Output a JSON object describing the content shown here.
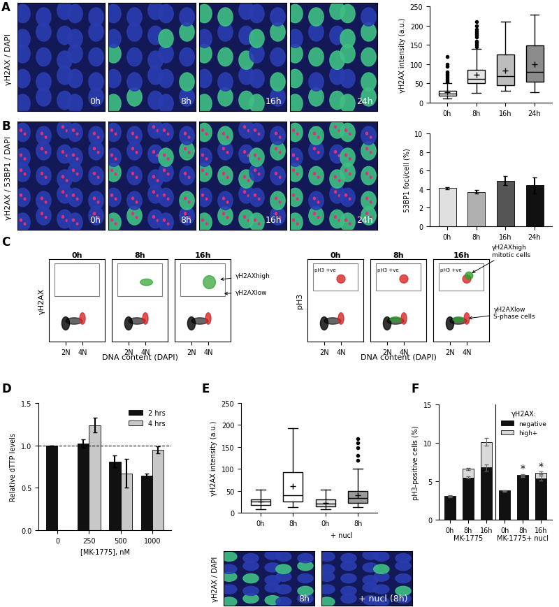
{
  "images": [
    {
      "panel": "A",
      "channels": "γH2AX / DAPI",
      "labels": [
        "0h",
        "8h",
        "16h",
        "24h"
      ]
    },
    {
      "panel": "B",
      "channels": "γH2AX / 53BP1 / DAPI",
      "labels": [
        "0h",
        "8h",
        "16h",
        "24h"
      ]
    },
    {
      "channels": "γH2AX / DAPI",
      "labels": [
        "8h",
        "+ nucl (8h)"
      ]
    }
  ],
  "flow_cytometry": {
    "panel": "C",
    "times": [
      "0h",
      "8h",
      "16h"
    ],
    "xlabel": "DNA content (DAPI)",
    "xtick_labels": [
      "2N",
      "4N"
    ],
    "left": {
      "ylabel": "γH2AX",
      "annotations": [
        "γH2AXhigh",
        "γH2AXlow"
      ]
    },
    "right": {
      "ylabel": "pH3",
      "gate_label": "pH3 +ve",
      "annotations": [
        "γH2AXhigh\nmitotic cells",
        "γH2AXlow\nS-phase cells"
      ]
    }
  },
  "chart_data": [
    {
      "type": "box",
      "ylabel": "γH2AX intensity (a.u.)",
      "categories": [
        "0h",
        "8h",
        "16h",
        "24h"
      ],
      "colors": [
        "#ffffff",
        "#e6e6e6",
        "#bdbdbd",
        "#8c8c8c"
      ],
      "boxes": [
        {
          "whislo": 10,
          "q1": 18,
          "med": 24,
          "q3": 30,
          "whishi": 50,
          "mean": 27,
          "fliers": [
            55,
            60,
            65,
            70,
            75,
            80,
            95,
            100,
            120
          ]
        },
        {
          "whislo": 25,
          "q1": 50,
          "med": 62,
          "q3": 85,
          "whishi": 140,
          "mean": 72,
          "fliers": [
            145,
            150,
            155,
            160,
            170,
            175,
            180,
            185,
            190,
            200,
            210
          ]
        },
        {
          "whislo": 30,
          "q1": 45,
          "med": 68,
          "q3": 125,
          "whishi": 210,
          "mean": 83,
          "fliers": []
        },
        {
          "whislo": 28,
          "q1": 55,
          "med": 80,
          "q3": 148,
          "whishi": 228,
          "mean": 100,
          "fliers": []
        }
      ],
      "ylim": [
        0,
        250
      ],
      "yticks": [
        0,
        50,
        100,
        150,
        200,
        250
      ]
    },
    {
      "type": "bar",
      "ylabel": "53BP1 foci/cell (%)",
      "categories": [
        "0h",
        "8h",
        "16h",
        "24h"
      ],
      "values": [
        4.1,
        3.7,
        4.9,
        4.4
      ],
      "errors": [
        0.1,
        0.2,
        0.5,
        0.9
      ],
      "colors": [
        "#e0e0e0",
        "#b0b0b0",
        "#555555",
        "#111111"
      ],
      "ylim": [
        0,
        10
      ],
      "yticks": [
        0,
        2,
        4,
        6,
        8,
        10
      ]
    },
    {
      "panel": "D",
      "type": "bar",
      "ylabel": "Relative dTTP levels",
      "xlabel": "[MK-1775], nM",
      "categories": [
        "0",
        "250",
        "500",
        "1000"
      ],
      "series": [
        {
          "name": "2 hrs",
          "color": "#111111",
          "values": [
            1.0,
            1.02,
            0.81,
            0.64
          ],
          "errors": [
            0,
            0.05,
            0.07,
            0.03
          ]
        },
        {
          "name": "4 hrs",
          "color": "#c8c8c8",
          "values": [
            null,
            1.24,
            0.67,
            0.95
          ],
          "errors": [
            null,
            0.09,
            0.17,
            0.04
          ]
        }
      ],
      "reference_line": {
        "value": 1.0,
        "line_style": "dashed"
      },
      "legend": "upper right",
      "ylim": [
        0,
        1.5
      ],
      "yticks": [
        {
          "value": 0,
          "label": "0.0"
        },
        {
          "value": 0.5,
          "label": "0.5"
        },
        {
          "value": 1.0,
          "label": "1.0"
        },
        {
          "value": 1.5,
          "label": "1.5"
        }
      ]
    },
    {
      "panel": "E",
      "type": "box",
      "ylabel": "γH2AX intensity (a.u.)",
      "categories": [
        "0h",
        "8h",
        "0h",
        "8h"
      ],
      "group_label": "+ nucl",
      "colors": [
        "#ffffff",
        "#ffffff",
        "#e6e6e6",
        "#9a9a9a"
      ],
      "boxes": [
        {
          "whislo": 8,
          "q1": 18,
          "med": 25,
          "q3": 30,
          "whishi": 52,
          "mean": 25,
          "fliers": []
        },
        {
          "whislo": 12,
          "q1": 25,
          "med": 40,
          "q3": 92,
          "whishi": 192,
          "mean": 60,
          "fliers": []
        },
        {
          "whislo": 8,
          "q1": 15,
          "med": 20,
          "q3": 30,
          "whishi": 52,
          "mean": 22,
          "fliers": []
        },
        {
          "whislo": 12,
          "q1": 22,
          "med": 33,
          "q3": 50,
          "whishi": 100,
          "mean": 40,
          "fliers": [
            120,
            130,
            148,
            160,
            168
          ]
        }
      ],
      "ylim": [
        0,
        250
      ],
      "yticks": [
        0,
        50,
        100,
        150,
        200,
        250
      ]
    },
    {
      "panel": "F",
      "type": "bar",
      "stacked": true,
      "ylabel": "pH3-positive cells (%)",
      "groups": [
        {
          "name": "MK-1775",
          "categories": [
            "0h",
            "8h",
            "16h"
          ]
        },
        {
          "name": "MK-1775+ nucl",
          "categories": [
            "0h",
            "8h",
            "16h"
          ]
        }
      ],
      "series": [
        {
          "name": "negative",
          "color": "#111111",
          "values": [
            3.0,
            5.5,
            6.8,
            3.7,
            5.7,
            5.4
          ],
          "errors": [
            0.05,
            0.1,
            0.4,
            0.1,
            0.15,
            0.3
          ]
        },
        {
          "name": "high+",
          "color": "#d9d9d9",
          "values": [
            0.1,
            1.1,
            3.3,
            0.1,
            0.1,
            0.7
          ],
          "errors": [
            0.05,
            0.1,
            0.5,
            0.05,
            0.15,
            0.2
          ]
        }
      ],
      "significance": [
        null,
        null,
        null,
        null,
        "*",
        "*"
      ],
      "legend_title": "γH2AX:",
      "legend": "upper right",
      "ylim": [
        0,
        15
      ],
      "yticks": [
        0,
        5,
        10,
        15
      ]
    }
  ]
}
